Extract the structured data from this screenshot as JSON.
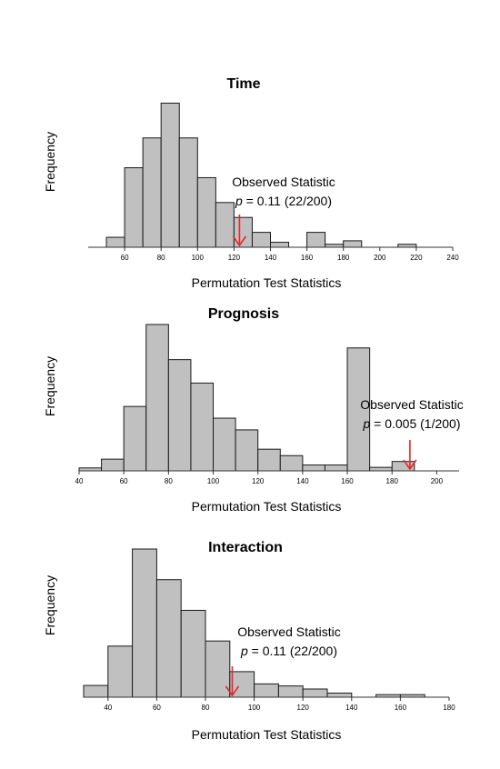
{
  "chart_data": [
    {
      "type": "bar",
      "title": "Time",
      "xlabel": "Permutation Test Statistics",
      "ylabel": "Frequency",
      "bin_width": 10,
      "bins": [
        {
          "start": 50,
          "count": 2
        },
        {
          "start": 60,
          "count": 16
        },
        {
          "start": 70,
          "count": 22
        },
        {
          "start": 80,
          "count": 29
        },
        {
          "start": 90,
          "count": 22
        },
        {
          "start": 100,
          "count": 14
        },
        {
          "start": 110,
          "count": 9
        },
        {
          "start": 120,
          "count": 6
        },
        {
          "start": 130,
          "count": 3
        },
        {
          "start": 140,
          "count": 1
        },
        {
          "start": 160,
          "count": 3
        },
        {
          "start": 170,
          "count": 0.6
        },
        {
          "start": 180,
          "count": 1.3
        },
        {
          "start": 210,
          "count": 0.6
        }
      ],
      "xlim": [
        40,
        240
      ],
      "ylim": [
        0,
        30
      ],
      "xticks": [
        60,
        80,
        100,
        120,
        140,
        160,
        180,
        200,
        220,
        240
      ],
      "observed": {
        "value": 123,
        "label": "Observed Statistic",
        "p_symbol": "p",
        "p_text": " = 0.11 (22/200)"
      }
    },
    {
      "type": "bar",
      "title": "Prognosis",
      "xlabel": "Permutation Test Statistics",
      "ylabel": "Frequency",
      "bin_width": 10,
      "bins": [
        {
          "start": 40,
          "count": 0.5
        },
        {
          "start": 50,
          "count": 2
        },
        {
          "start": 60,
          "count": 11
        },
        {
          "start": 70,
          "count": 25
        },
        {
          "start": 80,
          "count": 19
        },
        {
          "start": 90,
          "count": 15
        },
        {
          "start": 100,
          "count": 9
        },
        {
          "start": 110,
          "count": 7
        },
        {
          "start": 120,
          "count": 3.7
        },
        {
          "start": 130,
          "count": 2.6
        },
        {
          "start": 140,
          "count": 1
        },
        {
          "start": 150,
          "count": 1
        },
        {
          "start": 160,
          "count": 21.0
        },
        {
          "start": 170,
          "count": 0.6
        },
        {
          "start": 180,
          "count": 1.6
        }
      ],
      "xlim": [
        40,
        210
      ],
      "ylim": [
        0,
        25
      ],
      "xticks": [
        40,
        60,
        80,
        100,
        120,
        140,
        160,
        180,
        200
      ],
      "observed": {
        "value": 188,
        "label": "Observed Statistic",
        "p_symbol": "p",
        "p_text": " = 0.005 (1/200)"
      }
    },
    {
      "type": "bar",
      "title": "Interaction",
      "xlabel": "Permutation Test Statistics",
      "ylabel": "Frequency",
      "bin_width": 10,
      "bins": [
        {
          "start": 30,
          "count": 2.3
        },
        {
          "start": 40,
          "count": 10
        },
        {
          "start": 50,
          "count": 29
        },
        {
          "start": 60,
          "count": 23
        },
        {
          "start": 70,
          "count": 17
        },
        {
          "start": 80,
          "count": 11
        },
        {
          "start": 90,
          "count": 5
        },
        {
          "start": 100,
          "count": 2.6
        },
        {
          "start": 110,
          "count": 2.2
        },
        {
          "start": 120,
          "count": 1.6
        },
        {
          "start": 130,
          "count": 0.8
        },
        {
          "start": 150,
          "count": 0.5
        },
        {
          "start": 160,
          "count": 0.5
        }
      ],
      "xlim": [
        30,
        180
      ],
      "ylim": [
        0,
        29
      ],
      "xticks": [
        40,
        60,
        80,
        100,
        120,
        140,
        160,
        180
      ],
      "observed": {
        "value": 91,
        "label": "Observed Statistic",
        "p_symbol": "p",
        "p_text": " = 0.11 (22/200)"
      },
      "accent_color": "#e8262a"
    }
  ]
}
